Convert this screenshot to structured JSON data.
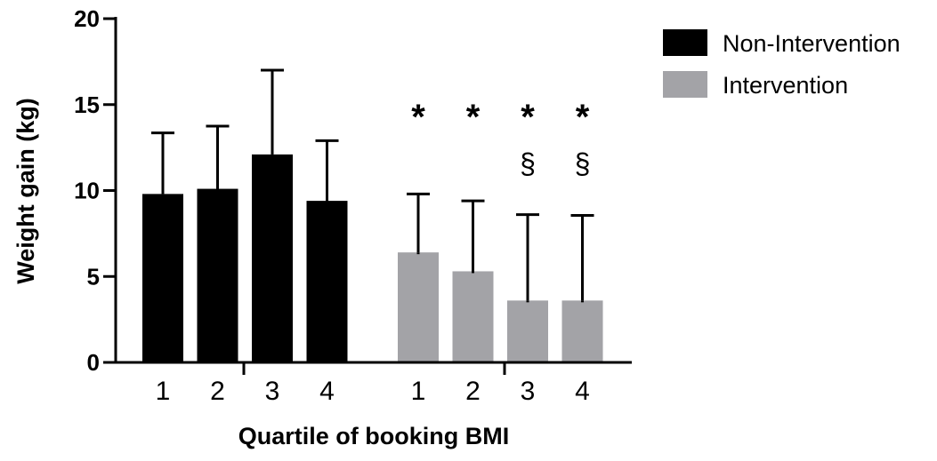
{
  "chart_data": {
    "type": "bar",
    "xlabel": "Quartile of booking BMI",
    "ylabel": "Weight gain (kg)",
    "ylim": [
      0,
      20
    ],
    "yticks": [
      0,
      5,
      10,
      15,
      20
    ],
    "grid": false,
    "legend_position": "top-right",
    "groups": [
      {
        "series": "Non-Intervention",
        "categories": [
          "1",
          "2",
          "3",
          "4"
        ]
      },
      {
        "series": "Intervention",
        "categories": [
          "1",
          "2",
          "3",
          "4"
        ]
      }
    ],
    "series": [
      {
        "name": "Non-Intervention",
        "color": "#000000",
        "values": [
          9.8,
          10.1,
          12.1,
          9.4
        ],
        "error_upper": [
          13.35,
          13.75,
          17.0,
          12.9
        ],
        "annotations": [
          "",
          "",
          "",
          ""
        ]
      },
      {
        "name": "Intervention",
        "color": "#a3a3a7",
        "values": [
          6.4,
          5.3,
          3.6,
          3.6
        ],
        "error_upper": [
          9.8,
          9.4,
          8.6,
          8.55
        ],
        "annotations": [
          "*",
          "*",
          "*\n§",
          "*\n§"
        ]
      }
    ],
    "annotation_symbols": [
      "*",
      "§"
    ]
  }
}
